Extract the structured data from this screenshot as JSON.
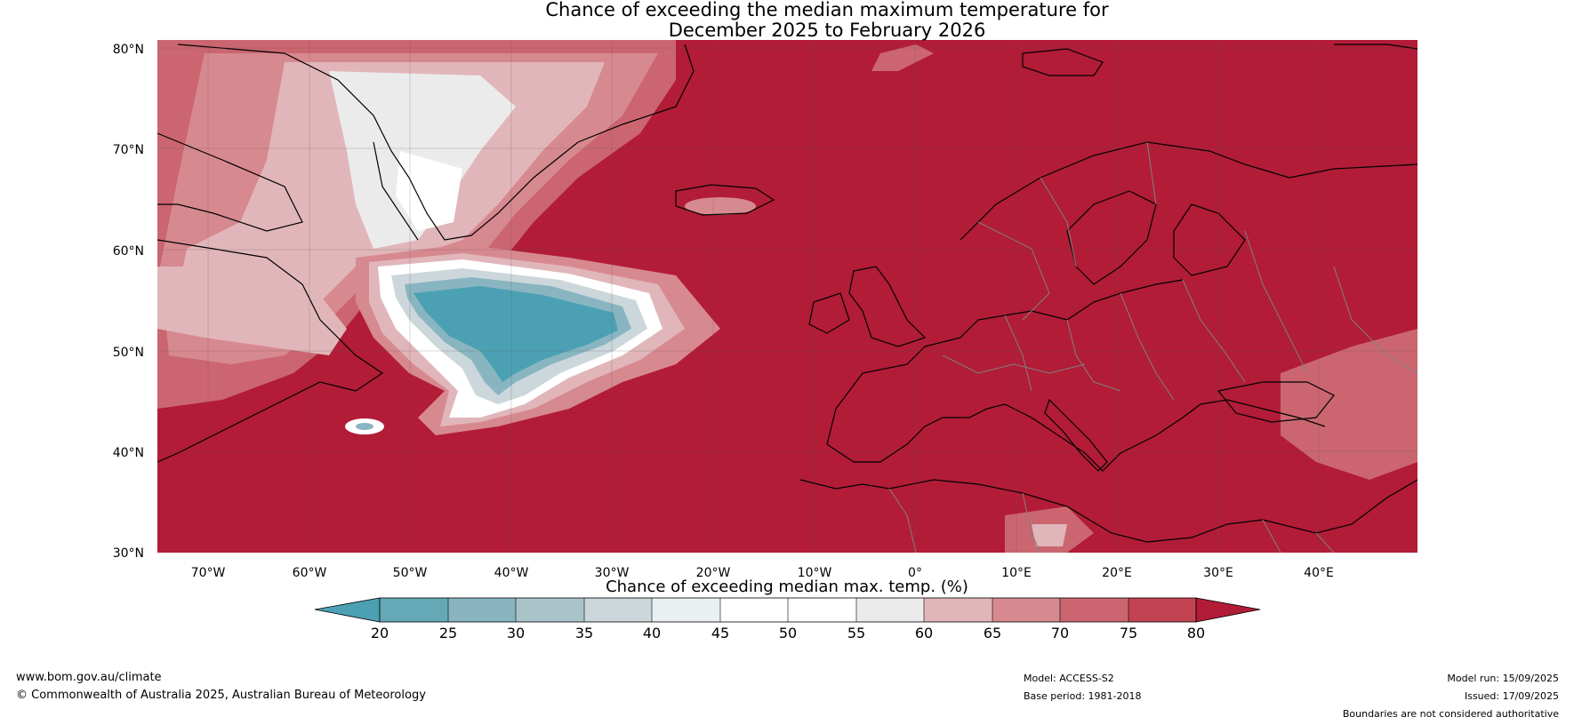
{
  "title": {
    "line1": "Chance of exceeding the median maximum temperature for",
    "line2": "December 2025 to February 2026"
  },
  "map": {
    "lat_labels": [
      "80°N",
      "70°N",
      "60°N",
      "50°N",
      "40°N",
      "30°N"
    ],
    "lon_labels": [
      "70°W",
      "60°W",
      "50°W",
      "40°W",
      "30°W",
      "20°W",
      "10°W",
      "0°",
      "10°E",
      "20°E",
      "30°E",
      "40°E"
    ],
    "colors": {
      "above80": "#b21c37",
      "c75_80": "#c24453",
      "c70_75": "#cb6670",
      "c65_70": "#d78990",
      "c60_65": "#e1b6ba",
      "c55_60": "#ecebec",
      "c45_55": "#ffffff",
      "c40_45": "#e8f0f1",
      "c35_40": "#ccd7db",
      "c30_35": "#a9c4c9",
      "c25_30": "#88b5c0",
      "c20_25": "#66a9b6",
      "below20": "#4ba1b3",
      "coastline": "#000000",
      "borders": "#808080"
    }
  },
  "colorbar": {
    "ticks": [
      "20",
      "25",
      "30",
      "35",
      "40",
      "45",
      "50",
      "55",
      "60",
      "65",
      "70",
      "75",
      "80"
    ],
    "label": "Chance of exceeding median max. temp. (%)"
  },
  "footer": {
    "url": "www.bom.gov.au/climate",
    "copyright": "© Commonwealth of Australia 2025, Australian Bureau of Meteorology",
    "model": "Model: ACCESS-S2",
    "base_period": "Base period: 1981-2018",
    "model_run": "Model run: 15/09/2025",
    "issued": "Issued: 17/09/2025",
    "disclaimer": "Boundaries are not considered authoritative"
  }
}
